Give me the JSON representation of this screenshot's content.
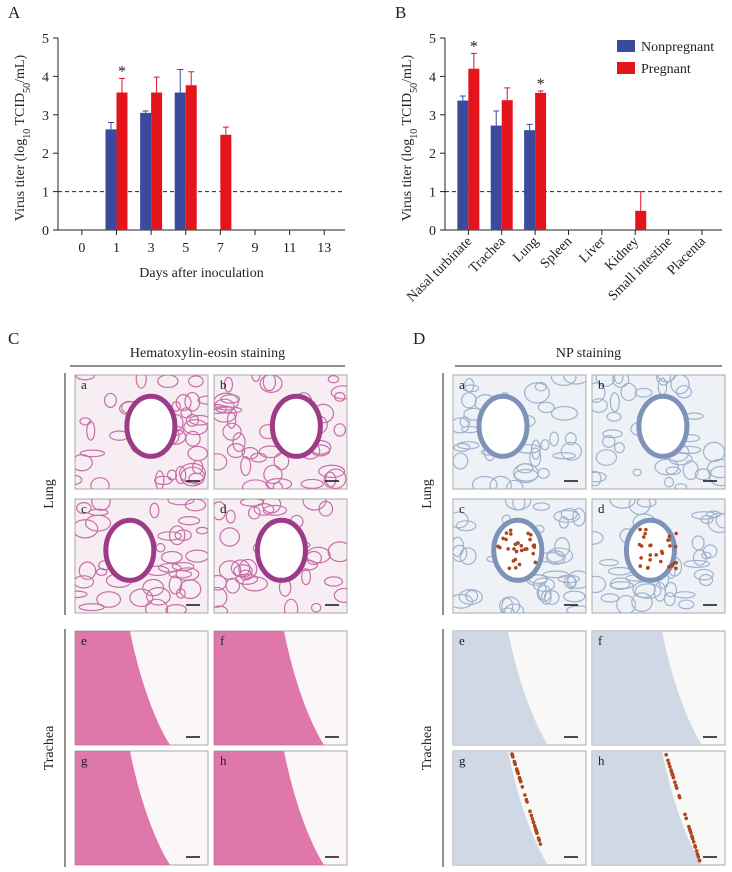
{
  "chart_data": [
    {
      "type": "bar",
      "panel": "A",
      "ylabel": [
        "Virus titer (log",
        "10",
        " TCID",
        "50",
        "/mL)"
      ],
      "xlabel": "Days after inoculation",
      "categories": [
        "0",
        "1",
        "3",
        "5",
        "7",
        "9",
        "11",
        "13"
      ],
      "series": [
        {
          "name": "Nonpregnant",
          "color": "#3c4a9e",
          "values": [
            null,
            2.62,
            3.05,
            3.58,
            null,
            null,
            null,
            null
          ],
          "errors": [
            null,
            0.18,
            0.05,
            0.6,
            null,
            null,
            null,
            null
          ]
        },
        {
          "name": "Pregnant",
          "color": "#e3141c",
          "values": [
            null,
            3.58,
            3.58,
            3.77,
            2.48,
            null,
            null,
            null
          ],
          "errors": [
            null,
            0.37,
            0.4,
            0.35,
            0.2,
            null,
            null,
            null
          ]
        }
      ],
      "annotations": [
        {
          "category": "1",
          "series": "Pregnant",
          "text": "*"
        }
      ],
      "reference_line": 1,
      "ylim": [
        0,
        5
      ],
      "yticks": [
        0,
        1,
        2,
        3,
        4,
        5
      ]
    },
    {
      "type": "bar",
      "panel": "B",
      "ylabel": [
        "Virus titer (log",
        "10",
        " TCID",
        "50",
        "/mL)"
      ],
      "categories": [
        "Nasal turbinate",
        "Trachea",
        "Lung",
        "Spleen",
        "Liver",
        "Kidney",
        "Small intestine",
        "Placenta"
      ],
      "series": [
        {
          "name": "Nonpregnant",
          "color": "#3c4a9e",
          "values": [
            3.37,
            2.72,
            2.6,
            null,
            null,
            null,
            null,
            null
          ],
          "errors": [
            0.12,
            0.38,
            0.15,
            null,
            null,
            null,
            null,
            null
          ]
        },
        {
          "name": "Pregnant",
          "color": "#e3141c",
          "values": [
            4.2,
            3.38,
            3.57,
            null,
            null,
            0.5,
            null,
            null
          ],
          "errors": [
            0.4,
            0.32,
            0.05,
            null,
            null,
            0.5,
            null,
            null
          ]
        }
      ],
      "annotations": [
        {
          "category": "Nasal turbinate",
          "series": "Pregnant",
          "text": "*"
        },
        {
          "category": "Lung",
          "series": "Pregnant",
          "text": "*"
        }
      ],
      "reference_line": 1,
      "legend": "top-right",
      "ylim": [
        0,
        5
      ],
      "yticks": [
        0,
        1,
        2,
        3,
        4,
        5
      ]
    }
  ],
  "panels": [
    {
      "letter": "C",
      "title": "Hematoxylin-eosin staining",
      "stain": "he",
      "groups": [
        {
          "label": "Lung",
          "images": [
            "a",
            "b",
            "c",
            "d"
          ]
        },
        {
          "label": "Trachea",
          "images": [
            "e",
            "f",
            "g",
            "h"
          ]
        }
      ]
    },
    {
      "letter": "D",
      "title": "NP staining",
      "stain": "np",
      "groups": [
        {
          "label": "Lung",
          "images": [
            "a",
            "b",
            "c",
            "d"
          ]
        },
        {
          "label": "Trachea",
          "images": [
            "e",
            "f",
            "g",
            "h"
          ]
        }
      ]
    }
  ]
}
